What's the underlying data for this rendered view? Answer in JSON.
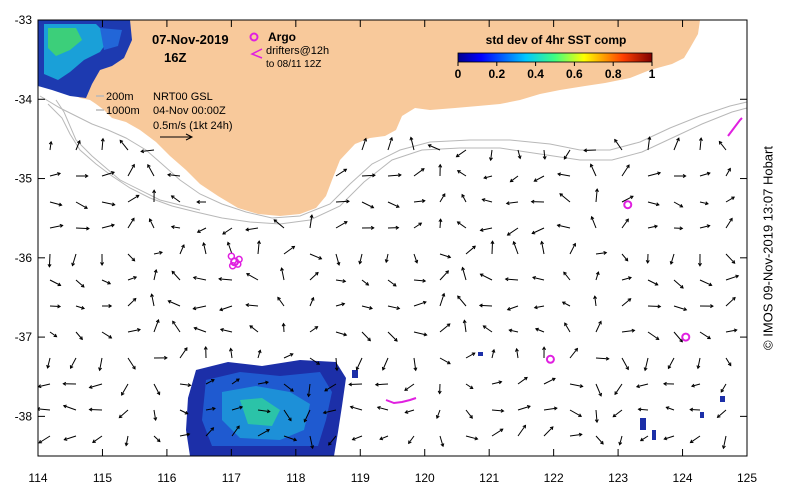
{
  "title": {
    "date": "07-Nov-2019",
    "hour": "16Z"
  },
  "legend": {
    "argo_label": "Argo",
    "drifter_label": "drifters@12h",
    "drifter_sub": "to 08/11 12Z",
    "isobath_200": "200m",
    "isobath_1000": "1000m",
    "current_source": "NRT00 GSL",
    "current_date": "04-Nov 00:00Z",
    "scale_label": "0.5m/s (1kt 24h)"
  },
  "colorbar": {
    "title": "std dev of 4hr SST comp",
    "ticks": [
      "0",
      "0.2",
      "0.4",
      "0.6",
      "0.8",
      "1"
    ]
  },
  "axes": {
    "x_ticks": [
      "114",
      "115",
      "116",
      "117",
      "118",
      "119",
      "120",
      "121",
      "122",
      "123",
      "124",
      "125"
    ],
    "y_ticks": [
      "-33",
      "-34",
      "-35",
      "-36",
      "-37",
      "-38"
    ],
    "x_range": [
      114,
      125
    ],
    "y_range": [
      -38.5,
      -33
    ]
  },
  "credit": "© IMOS 09-Nov-2019 13:07 Hobart",
  "colors": {
    "land": "#f8c99b",
    "argo": "#e020e0",
    "isobath": "#b8b8b8"
  },
  "argo_floats": [
    {
      "lon": 117.05,
      "lat": -36.05
    },
    {
      "lon": 123.15,
      "lat": -35.33
    },
    {
      "lon": 124.05,
      "lat": -37.0
    },
    {
      "lon": 121.95,
      "lat": -37.28
    }
  ]
}
